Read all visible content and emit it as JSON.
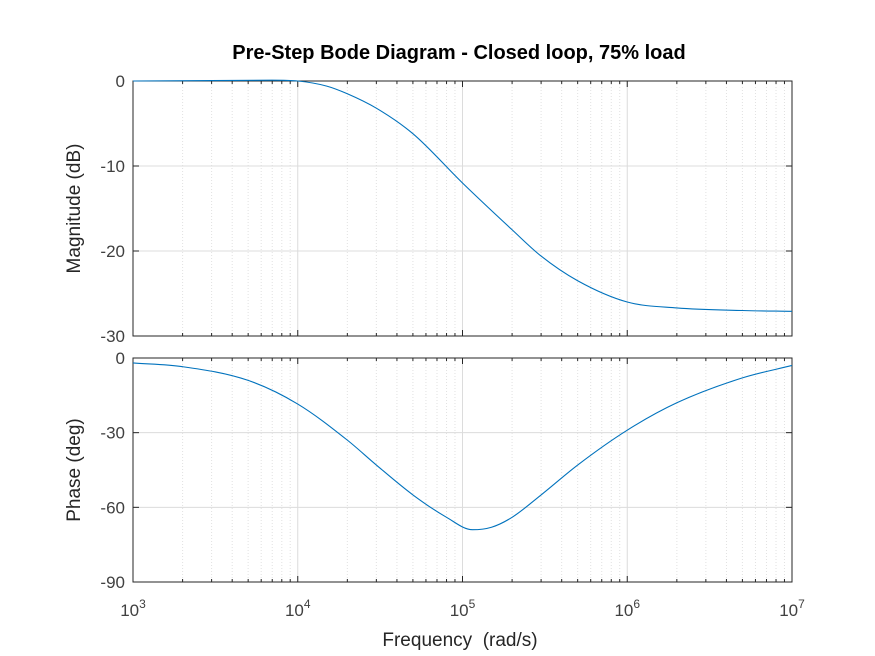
{
  "chart_data": {
    "type": "line",
    "title": "Pre-Step Bode Diagram - Closed loop, 75% load",
    "xlabel": "Frequency  (rad/s)",
    "x_scale": "log",
    "xlim": [
      1000,
      10000000
    ],
    "x_tick_labels": [
      {
        "base": "10",
        "exp": "3"
      },
      {
        "base": "10",
        "exp": "4"
      },
      {
        "base": "10",
        "exp": "5"
      },
      {
        "base": "10",
        "exp": "6"
      },
      {
        "base": "10",
        "exp": "7"
      }
    ],
    "grid": true,
    "line_color": "#0072bd",
    "panels": [
      {
        "name": "magnitude",
        "ylabel": "Magnitude (dB)",
        "ylim": [
          -30,
          0
        ],
        "y_ticks": [
          0,
          -10,
          -20,
          -30
        ],
        "y_tick_labels": [
          "0",
          "-10",
          "-20",
          "-30"
        ],
        "x": [
          1000,
          3000,
          7000,
          10000,
          15000,
          20000,
          30000,
          50000,
          100000,
          200000,
          300000,
          500000,
          1000000,
          2000000,
          5000000,
          10000000
        ],
        "y": [
          0,
          0.05,
          0.1,
          0.0,
          -0.6,
          -1.5,
          -3.2,
          -6.2,
          -12.0,
          -17.5,
          -20.6,
          -23.5,
          -26.0,
          -26.7,
          -27.0,
          -27.1
        ]
      },
      {
        "name": "phase",
        "ylabel": "Phase (deg)",
        "ylim": [
          -90,
          0
        ],
        "y_ticks": [
          0,
          -30,
          -60,
          -90
        ],
        "y_tick_labels": [
          "0",
          "-30",
          "-60",
          "-90"
        ],
        "x": [
          1000,
          2000,
          5000,
          10000,
          20000,
          30000,
          50000,
          80000,
          115000,
          150000,
          200000,
          300000,
          500000,
          1000000,
          2000000,
          5000000,
          10000000
        ],
        "y": [
          -2,
          -3.5,
          -9,
          -18.5,
          -33,
          -43,
          -55,
          -64,
          -69,
          -68,
          -64,
          -55,
          -43,
          -29,
          -18,
          -8,
          -3
        ]
      }
    ]
  }
}
